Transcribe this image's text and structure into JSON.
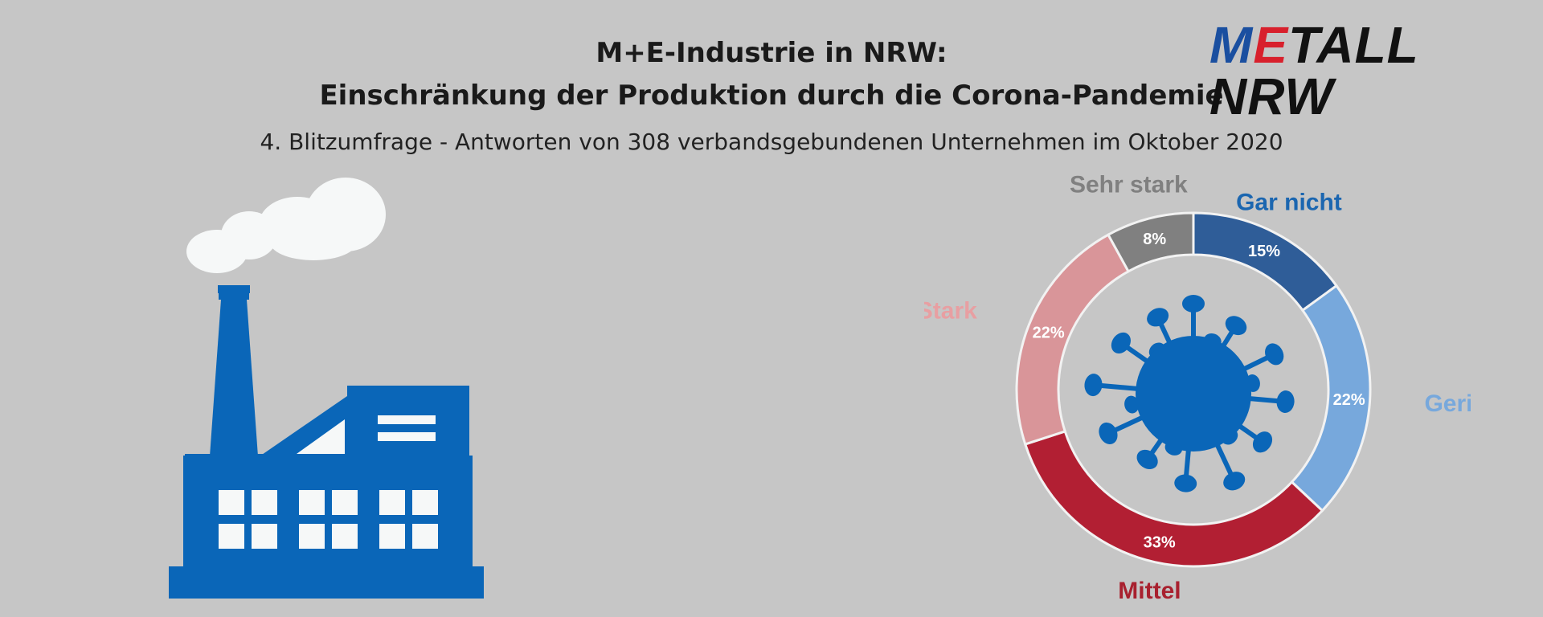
{
  "title_line1": "M+E-Industrie in NRW:",
  "title_line2": "Einschränkung der Produktion durch die Corona-Pandemie",
  "subtitle": "4. Blitzumfrage - Antworten von 308 verbandsgebundenen Unternehmen im Oktober 2020",
  "logo": {
    "m": "M",
    "e": "E",
    "rest": "TALL NRW"
  },
  "colors": {
    "background": "#c6c6c6",
    "factory": "#0a66b8",
    "virus": "#0a66b8",
    "logo_blue": "#1a4fa0",
    "logo_red": "#d8202c"
  },
  "chart_data": {
    "type": "pie",
    "variant": "donut",
    "unit": "%",
    "categories": [
      "Gar nicht",
      "Gering",
      "Mittel",
      "Stark",
      "Sehr stark"
    ],
    "values": [
      15,
      22,
      33,
      22,
      8
    ],
    "value_labels": [
      "15%",
      "22%",
      "33%",
      "22%",
      "8%"
    ],
    "colors": [
      "#2f5d98",
      "#77a8dc",
      "#b21f33",
      "#d99599",
      "#808080"
    ],
    "label_colors": [
      "#1b66b0",
      "#77a8dc",
      "#a8202e",
      "#e89fa2",
      "#808080"
    ],
    "start_angle_deg": 0,
    "direction": "clockwise",
    "legend_placement": "labels around ring"
  }
}
